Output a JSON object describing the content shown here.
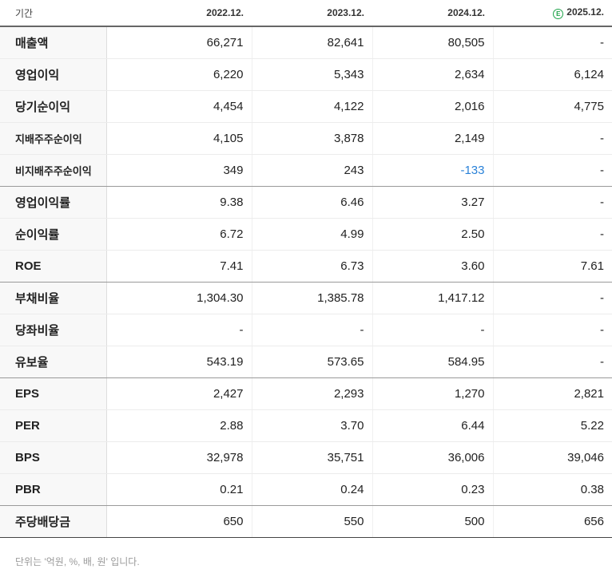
{
  "header": {
    "label": "기간",
    "years": [
      "2022.12.",
      "2023.12.",
      "2024.12.",
      "2025.12."
    ],
    "estimate_marker": "E",
    "estimate_color": "#1fa34a"
  },
  "rows": [
    {
      "label": "매출액",
      "values": [
        "66,271",
        "82,641",
        "80,505",
        "-"
      ]
    },
    {
      "label": "영업이익",
      "values": [
        "6,220",
        "5,343",
        "2,634",
        "6,124"
      ]
    },
    {
      "label": "당기순이익",
      "values": [
        "4,454",
        "4,122",
        "2,016",
        "4,775"
      ]
    },
    {
      "label": "지배주주순이익",
      "values": [
        "4,105",
        "3,878",
        "2,149",
        "-"
      ]
    },
    {
      "label": "비지배주주순이익",
      "values": [
        "349",
        "243",
        "-133",
        "-"
      ]
    },
    {
      "label": "영업이익률",
      "values": [
        "9.38",
        "6.46",
        "3.27",
        "-"
      ]
    },
    {
      "label": "순이익률",
      "values": [
        "6.72",
        "4.99",
        "2.50",
        "-"
      ]
    },
    {
      "label": "ROE",
      "values": [
        "7.41",
        "6.73",
        "3.60",
        "7.61"
      ]
    },
    {
      "label": "부채비율",
      "values": [
        "1,304.30",
        "1,385.78",
        "1,417.12",
        "-"
      ]
    },
    {
      "label": "당좌비율",
      "values": [
        "-",
        "-",
        "-",
        "-"
      ]
    },
    {
      "label": "유보율",
      "values": [
        "543.19",
        "573.65",
        "584.95",
        "-"
      ]
    },
    {
      "label": "EPS",
      "values": [
        "2,427",
        "2,293",
        "1,270",
        "2,821"
      ]
    },
    {
      "label": "PER",
      "values": [
        "2.88",
        "3.70",
        "6.44",
        "5.22"
      ]
    },
    {
      "label": "BPS",
      "values": [
        "32,978",
        "35,751",
        "36,006",
        "39,046"
      ]
    },
    {
      "label": "PBR",
      "values": [
        "0.21",
        "0.24",
        "0.23",
        "0.38"
      ]
    },
    {
      "label": "주당배당금",
      "values": [
        "650",
        "550",
        "500",
        "656"
      ]
    }
  ],
  "colors": {
    "negative_value": "#2a82d8",
    "label_background": "#f8f8f8"
  },
  "footnote": "단위는 '억원, %, 배, 원' 입니다."
}
